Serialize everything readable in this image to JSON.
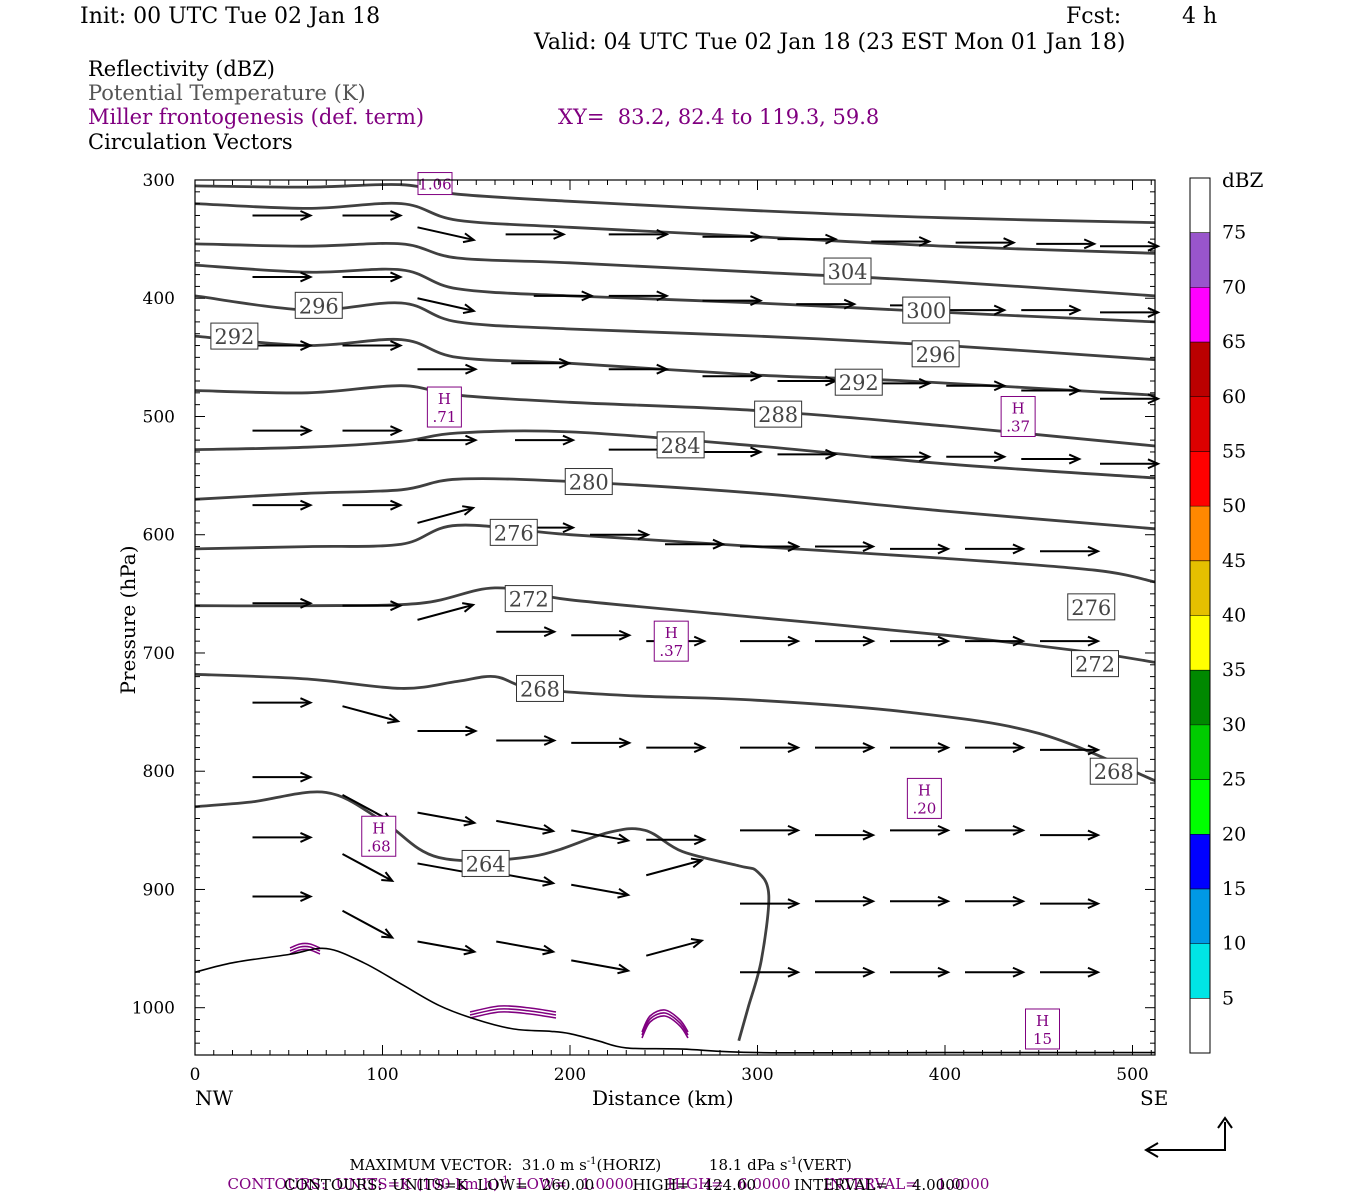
{
  "header": {
    "init": "Init: 00 UTC Tue 02 Jan 18",
    "fcst_label": "Fcst:",
    "fcst_value": "4 h",
    "valid": "Valid: 04 UTC Tue 02 Jan 18 (23 EST Mon 01 Jan 18)",
    "field1": "Reflectivity (dBZ)",
    "field2": "Potential Temperature (K)",
    "field3": "Miller frontogenesis (def. term)",
    "xy": "XY=  83.2, 82.4 to 119.3, 59.8",
    "field4": "Circulation Vectors"
  },
  "colors": {
    "theta": "#404040",
    "frontogenesis": "#800080",
    "vector": "#000000"
  },
  "footer": {
    "max_vector_a": "MAXIMUM VECTOR:  31.0 m s",
    "max_vector_b": "(HORIZ)          18.1 dPa s",
    "max_vector_c": "(VERT)",
    "contours_purple": "CONTOURS:  UNITS=K (100 km h)",
    "contours_purple_b": "LOW=   1.0000       HIGH=   6.0000       INTERVAL=    1.0000",
    "contours_black": "CONTOURS:  UNITS=K  LOW=   260.00        HIGH=   424.00        INTERVAL=     4.0000",
    "sup_m1": "-1",
    "sup_m1b": "-1",
    "sup_m1c": "-1"
  },
  "chart_data": {
    "type": "cross-section",
    "xlabel": "Distance (km)",
    "ylabel": "Pressure (hPa)",
    "xlim": [
      0,
      512
    ],
    "ylim": [
      1040,
      300
    ],
    "x_ticks": [
      0,
      100,
      200,
      300,
      400,
      500
    ],
    "y_ticks": [
      300,
      400,
      500,
      600,
      700,
      800,
      900,
      1000
    ],
    "x_end_labels": {
      "left": "NW",
      "right": "SE"
    },
    "colorbar": {
      "unit": "dBZ",
      "levels": [
        5,
        10,
        15,
        20,
        25,
        30,
        35,
        40,
        45,
        50,
        55,
        60,
        65,
        70,
        75
      ],
      "colors": [
        "#ffffff",
        "#00e5e5",
        "#0099e5",
        "#0000ff",
        "#00ff00",
        "#00cc00",
        "#008800",
        "#ffff00",
        "#e5c000",
        "#ff8800",
        "#ff0000",
        "#dd0000",
        "#bb0000",
        "#ff00ff",
        "#9955cc",
        "#ffffff"
      ]
    },
    "isentropes": [
      {
        "label": "264",
        "label_at": [
          155,
          878
        ],
        "points": [
          [
            0,
            830
          ],
          [
            30,
            826
          ],
          [
            70,
            818
          ],
          [
            100,
            842
          ],
          [
            130,
            873
          ],
          [
            180,
            872
          ],
          [
            220,
            852
          ],
          [
            240,
            850
          ],
          [
            260,
            868
          ],
          [
            290,
            880
          ],
          [
            300,
            885
          ],
          [
            306,
            905
          ],
          [
            302,
            960
          ],
          [
            295,
            1000
          ],
          [
            290,
            1028
          ]
        ]
      },
      {
        "label": "268",
        "label_at": [
          184,
          730
        ],
        "points": [
          [
            0,
            718
          ],
          [
            60,
            722
          ],
          [
            110,
            730
          ],
          [
            140,
            724
          ],
          [
            160,
            720
          ],
          [
            180,
            730
          ],
          [
            230,
            736
          ],
          [
            300,
            740
          ],
          [
            380,
            750
          ],
          [
            450,
            768
          ],
          [
            512,
            808
          ]
        ]
      },
      {
        "label": "268",
        "label_at": [
          490,
          800
        ]
      },
      {
        "label": "272",
        "label_at": [
          178,
          654
        ],
        "points": [
          [
            0,
            660
          ],
          [
            60,
            660
          ],
          [
            120,
            658
          ],
          [
            160,
            645
          ],
          [
            200,
            655
          ],
          [
            300,
            670
          ],
          [
            400,
            685
          ],
          [
            480,
            700
          ],
          [
            512,
            708
          ]
        ]
      },
      {
        "label": "272",
        "label_at": [
          480,
          709
        ]
      },
      {
        "label": "276",
        "label_at": [
          170,
          598
        ],
        "points": [
          [
            0,
            612
          ],
          [
            60,
            610
          ],
          [
            110,
            608
          ],
          [
            140,
            592
          ],
          [
            200,
            600
          ],
          [
            300,
            610
          ],
          [
            400,
            620
          ],
          [
            480,
            630
          ],
          [
            512,
            640
          ]
        ]
      },
      {
        "label": "276",
        "label_at": [
          478,
          661
        ]
      },
      {
        "label": "280",
        "label_at": [
          210,
          555
        ],
        "points": [
          [
            0,
            570
          ],
          [
            60,
            565
          ],
          [
            110,
            562
          ],
          [
            140,
            553
          ],
          [
            200,
            555
          ],
          [
            300,
            565
          ],
          [
            400,
            580
          ],
          [
            512,
            595
          ]
        ]
      },
      {
        "label": "284",
        "label_at": [
          259,
          524
        ],
        "points": [
          [
            0,
            528
          ],
          [
            60,
            526
          ],
          [
            110,
            521
          ],
          [
            140,
            514
          ],
          [
            200,
            513
          ],
          [
            300,
            525
          ],
          [
            400,
            540
          ],
          [
            512,
            552
          ]
        ]
      },
      {
        "label": "288",
        "label_at": [
          311,
          498
        ],
        "points": [
          [
            0,
            478
          ],
          [
            60,
            480
          ],
          [
            110,
            474
          ],
          [
            140,
            482
          ],
          [
            200,
            488
          ],
          [
            300,
            495
          ],
          [
            400,
            508
          ],
          [
            512,
            525
          ]
        ]
      },
      {
        "label": "292",
        "label_at": [
          21,
          432
        ],
        "points": [
          [
            0,
            432
          ],
          [
            60,
            440
          ],
          [
            110,
            435
          ],
          [
            140,
            450
          ],
          [
            200,
            455
          ],
          [
            300,
            465
          ],
          [
            380,
            470
          ],
          [
            512,
            482
          ]
        ]
      },
      {
        "label": "292",
        "label_at": [
          354,
          471
        ]
      },
      {
        "label": "296",
        "label_at": [
          66,
          406
        ],
        "points": [
          [
            0,
            398
          ],
          [
            60,
            410
          ],
          [
            110,
            404
          ],
          [
            140,
            420
          ],
          [
            200,
            426
          ],
          [
            300,
            432
          ],
          [
            400,
            440
          ],
          [
            512,
            452
          ]
        ]
      },
      {
        "label": "296",
        "label_at": [
          395,
          447
        ]
      },
      {
        "label": "300",
        "label_at": [
          390,
          410
        ],
        "points": [
          [
            0,
            372
          ],
          [
            60,
            378
          ],
          [
            110,
            376
          ],
          [
            140,
            392
          ],
          [
            200,
            398
          ],
          [
            300,
            404
          ],
          [
            400,
            412
          ],
          [
            512,
            420
          ]
        ]
      },
      {
        "label": "304",
        "label_at": [
          348,
          377
        ],
        "points": [
          [
            0,
            354
          ],
          [
            60,
            356
          ],
          [
            110,
            354
          ],
          [
            140,
            366
          ],
          [
            200,
            370
          ],
          [
            300,
            378
          ],
          [
            400,
            386
          ],
          [
            512,
            398
          ]
        ]
      },
      {
        "label": "",
        "points": [
          [
            0,
            320
          ],
          [
            60,
            324
          ],
          [
            110,
            320
          ],
          [
            140,
            334
          ],
          [
            200,
            340
          ],
          [
            300,
            348
          ],
          [
            400,
            356
          ],
          [
            512,
            362
          ]
        ]
      },
      {
        "label": "",
        "points": [
          [
            0,
            305
          ],
          [
            60,
            306
          ],
          [
            110,
            304
          ],
          [
            140,
            312
          ],
          [
            200,
            318
          ],
          [
            300,
            326
          ],
          [
            400,
            332
          ],
          [
            512,
            336
          ]
        ]
      }
    ],
    "frontogenesis_maxima": [
      {
        "label": "H",
        "value": ".71",
        "at": [
          133,
          492
        ]
      },
      {
        "label": "H",
        "value": ".37",
        "at": [
          439,
          500
        ]
      },
      {
        "label": "H",
        "value": ".37",
        "at": [
          254,
          690
        ]
      },
      {
        "label": "H",
        "value": ".68",
        "at": [
          98,
          855
        ]
      },
      {
        "label": "H",
        "value": ".20",
        "at": [
          389,
          823
        ]
      },
      {
        "label": "H",
        "value": "15",
        "at": [
          452,
          1018
        ]
      },
      {
        "label": "",
        "value": "1.06",
        "at": [
          128,
          303
        ]
      }
    ],
    "vectors_uv": [
      [
        18,
        325,
        1.0,
        0
      ],
      [
        60,
        330,
        1.0,
        0
      ],
      [
        108,
        330,
        1.0,
        0
      ],
      [
        148,
        340,
        1.0,
        0.25
      ],
      [
        195,
        346,
        1.0,
        0
      ],
      [
        250,
        346,
        1.0,
        0
      ],
      [
        300,
        348,
        1.0,
        0
      ],
      [
        340,
        350,
        1.0,
        0
      ],
      [
        390,
        352,
        1.0,
        0
      ],
      [
        435,
        353,
        1.0,
        0
      ],
      [
        478,
        354,
        1.0,
        0
      ],
      [
        512,
        356,
        1.0,
        0
      ],
      [
        18,
        378,
        1.0,
        0
      ],
      [
        60,
        382,
        1.0,
        0
      ],
      [
        108,
        382,
        1.0,
        0
      ],
      [
        148,
        400,
        1.0,
        0.25
      ],
      [
        210,
        398,
        1.0,
        0
      ],
      [
        250,
        398,
        1.0,
        0
      ],
      [
        300,
        402,
        1.0,
        0
      ],
      [
        350,
        405,
        1.0,
        0
      ],
      [
        400,
        406,
        1.0,
        0
      ],
      [
        430,
        410,
        1.0,
        0
      ],
      [
        470,
        410,
        1.0,
        0
      ],
      [
        512,
        412,
        1.0,
        0
      ],
      [
        18,
        440,
        1.0,
        0
      ],
      [
        60,
        440,
        1.0,
        0
      ],
      [
        108,
        440,
        1.0,
        0
      ],
      [
        148,
        460,
        1.0,
        0
      ],
      [
        198,
        455,
        1.0,
        0
      ],
      [
        250,
        460,
        1.0,
        0
      ],
      [
        300,
        466,
        1.0,
        0
      ],
      [
        340,
        470,
        1.0,
        0
      ],
      [
        390,
        472,
        1.0,
        0
      ],
      [
        430,
        474,
        1.0,
        0
      ],
      [
        470,
        478,
        1.0,
        0
      ],
      [
        512,
        485,
        1.0,
        0
      ],
      [
        18,
        510,
        1.0,
        0
      ],
      [
        60,
        512,
        1.0,
        0
      ],
      [
        108,
        512,
        1.0,
        0
      ],
      [
        148,
        520,
        1.0,
        0
      ],
      [
        200,
        520,
        1.0,
        0
      ],
      [
        250,
        528,
        1.0,
        0
      ],
      [
        300,
        530,
        1.0,
        0
      ],
      [
        340,
        532,
        1.0,
        0
      ],
      [
        390,
        534,
        1.0,
        0
      ],
      [
        430,
        534,
        1.0,
        0
      ],
      [
        470,
        536,
        1.0,
        0
      ],
      [
        512,
        540,
        1.0,
        0
      ],
      [
        18,
        575,
        1.0,
        0
      ],
      [
        60,
        575,
        1.0,
        0
      ],
      [
        108,
        575,
        1.0,
        0
      ],
      [
        148,
        590,
        1.0,
        -0.3
      ],
      [
        200,
        594,
        1.0,
        0
      ],
      [
        240,
        600,
        1.0,
        0
      ],
      [
        280,
        608,
        1.0,
        0
      ],
      [
        320,
        610,
        1.0,
        0
      ],
      [
        360,
        610,
        1.0,
        0
      ],
      [
        400,
        612,
        1.0,
        0
      ],
      [
        440,
        612,
        1.0,
        0
      ],
      [
        480,
        614,
        1.0,
        0
      ],
      [
        18,
        660,
        1.0,
        0
      ],
      [
        60,
        658,
        1.0,
        0
      ],
      [
        108,
        660,
        1.0,
        0
      ],
      [
        148,
        672,
        1.0,
        -0.3
      ],
      [
        190,
        682,
        1.0,
        0
      ],
      [
        230,
        685,
        1.0,
        0
      ],
      [
        270,
        690,
        1.0,
        0
      ],
      [
        320,
        690,
        1.0,
        0
      ],
      [
        360,
        690,
        1.0,
        0
      ],
      [
        400,
        690,
        1.0,
        0
      ],
      [
        440,
        690,
        1.0,
        0
      ],
      [
        480,
        690,
        1.0,
        0
      ],
      [
        18,
        745,
        1.0,
        0
      ],
      [
        60,
        742,
        1.0,
        0
      ],
      [
        108,
        745,
        1.0,
        0.3
      ],
      [
        148,
        766,
        1.0,
        0
      ],
      [
        190,
        774,
        1.0,
        0
      ],
      [
        230,
        776,
        1.0,
        0
      ],
      [
        270,
        780,
        1.0,
        0
      ],
      [
        320,
        780,
        1.0,
        0
      ],
      [
        360,
        780,
        1.0,
        0
      ],
      [
        400,
        780,
        1.0,
        0
      ],
      [
        440,
        780,
        1.0,
        0
      ],
      [
        480,
        782,
        1.0,
        0
      ],
      [
        18,
        805,
        1.0,
        0
      ],
      [
        60,
        805,
        1.0,
        0
      ],
      [
        108,
        820,
        1.0,
        0.6
      ],
      [
        148,
        835,
        1.0,
        0.2
      ],
      [
        190,
        842,
        1.0,
        0.2
      ],
      [
        230,
        850,
        1.0,
        0.2
      ],
      [
        270,
        858,
        1.0,
        0
      ],
      [
        320,
        850,
        1.0,
        0
      ],
      [
        360,
        854,
        1.0,
        0
      ],
      [
        400,
        850,
        1.0,
        0
      ],
      [
        440,
        850,
        1.0,
        0
      ],
      [
        480,
        854,
        1.0,
        0
      ],
      [
        18,
        858,
        1.0,
        0
      ],
      [
        60,
        856,
        1.0,
        0
      ],
      [
        108,
        870,
        1.0,
        0.6
      ],
      [
        148,
        878,
        1.0,
        0.2
      ],
      [
        190,
        886,
        1.0,
        0.2
      ],
      [
        230,
        896,
        1.0,
        0.2
      ],
      [
        270,
        888,
        1.0,
        -0.3
      ],
      [
        320,
        912,
        1.0,
        0
      ],
      [
        360,
        910,
        1.0,
        0
      ],
      [
        400,
        910,
        1.0,
        0
      ],
      [
        440,
        910,
        1.0,
        0
      ],
      [
        480,
        912,
        1.0,
        0
      ],
      [
        18,
        908,
        1.0,
        -0.3
      ],
      [
        60,
        906,
        1.0,
        0
      ],
      [
        108,
        918,
        1.0,
        0.6
      ],
      [
        148,
        944,
        1.0,
        0.2
      ],
      [
        190,
        944,
        1.0,
        0.2
      ],
      [
        230,
        960,
        1.0,
        0.2
      ],
      [
        270,
        956,
        1.0,
        -0.3
      ],
      [
        320,
        970,
        1.0,
        0
      ],
      [
        360,
        970,
        1.0,
        0
      ],
      [
        400,
        970,
        1.0,
        0
      ],
      [
        440,
        970,
        1.0,
        0
      ],
      [
        480,
        970,
        1.0,
        0
      ]
    ]
  }
}
